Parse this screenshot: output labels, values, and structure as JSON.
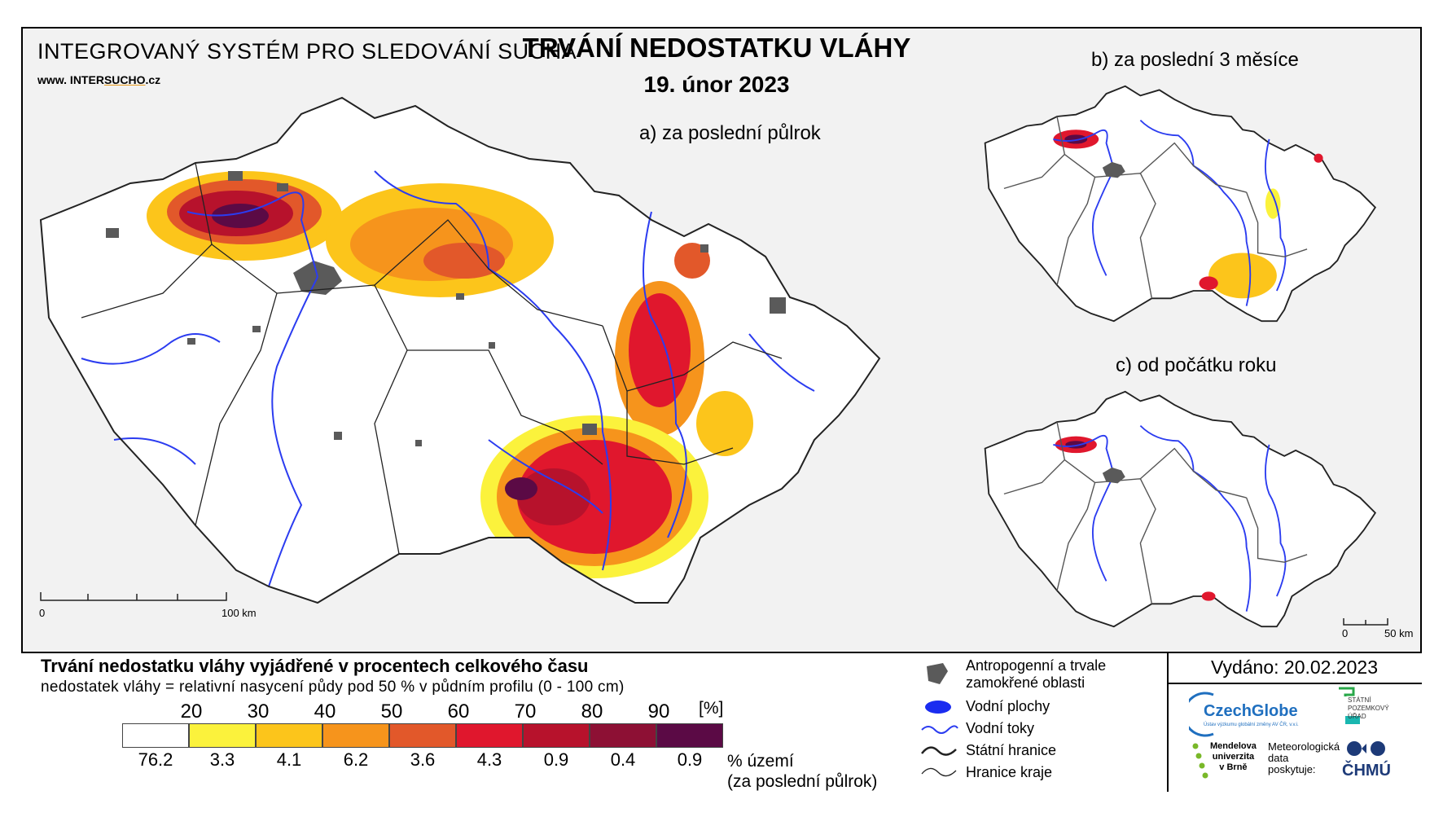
{
  "header": {
    "system_name": "INTEGROVANÝ SYSTÉM PRO SLEDOVÁNÍ SUCHA",
    "website_prefix": "www. INTER",
    "website_mid": "SUCHO",
    "website_suffix": ".cz",
    "title": "TRVÁNÍ NEDOSTATKU VLÁHY",
    "date": "19. únor 2023"
  },
  "panels": {
    "a": "a) za poslední půlrok",
    "b": "b) za poslední 3 měsíce",
    "c": "c) od počátku roku"
  },
  "scales": {
    "main": {
      "zero": "0",
      "end": "100 km"
    },
    "small": {
      "zero": "0",
      "end": "50 km"
    }
  },
  "legend": {
    "title": "Trvání nedostatku vláhy vyjádřené v procentech celkového času",
    "subtitle": "nedostatek vláhy = relativní nasycení půdy pod 50 % v půdním profilu (0 - 100 cm)",
    "unit": "[%]",
    "thresholds": [
      "20",
      "30",
      "40",
      "50",
      "60",
      "70",
      "80",
      "90"
    ],
    "classes": [
      {
        "color": "#ffffff",
        "percent": "76.2"
      },
      {
        "color": "#fbf23c",
        "percent": "3.3"
      },
      {
        "color": "#fcc51b",
        "percent": "4.1"
      },
      {
        "color": "#f6941c",
        "percent": "6.2"
      },
      {
        "color": "#e2582a",
        "percent": "3.6"
      },
      {
        "color": "#e0172d",
        "percent": "4.3"
      },
      {
        "color": "#b7122c",
        "percent": "0.9"
      },
      {
        "color": "#8d1034",
        "percent": "0.4"
      },
      {
        "color": "#5b0a45",
        "percent": "0.9"
      }
    ],
    "percent_caption_1": "% území",
    "percent_caption_2": "(za poslední půlrok)"
  },
  "symbols": [
    {
      "icon": "anthropogenic-area-icon",
      "label_1": "Antropogenní a trvale",
      "label_2": "zamokřené oblasti"
    },
    {
      "icon": "water-body-icon",
      "label_1": "Vodní plochy"
    },
    {
      "icon": "river-icon",
      "label_1": "Vodní toky"
    },
    {
      "icon": "state-border-icon",
      "label_1": "Státní hranice"
    },
    {
      "icon": "region-border-icon",
      "label_1": "Hranice kraje"
    }
  ],
  "issued": "Vydáno: 20.02.2023",
  "logos": {
    "czechglobe": "CzechGlobe",
    "czechglobe_sub": "Ústav výzkumu globální změny AV ČR, v.v.i.",
    "spu": [
      "STÁTNÍ",
      "POZEMKOVÝ",
      "ÚŘAD"
    ],
    "mendel": [
      "Mendelova",
      "univerzita",
      "v Brně"
    ],
    "meteo": [
      "Meteorologická",
      "data",
      "poskytuje:"
    ],
    "chmu": "ČHMÚ"
  },
  "colors": {
    "river": "#2b3cf0",
    "urban": "#5a5a5a",
    "border": "#222222",
    "czechglobe_blue": "#1f6fbf",
    "mendel_green": "#79b829",
    "spu_green": "#2aa84a",
    "chmu_blue": "#1d3a78"
  }
}
